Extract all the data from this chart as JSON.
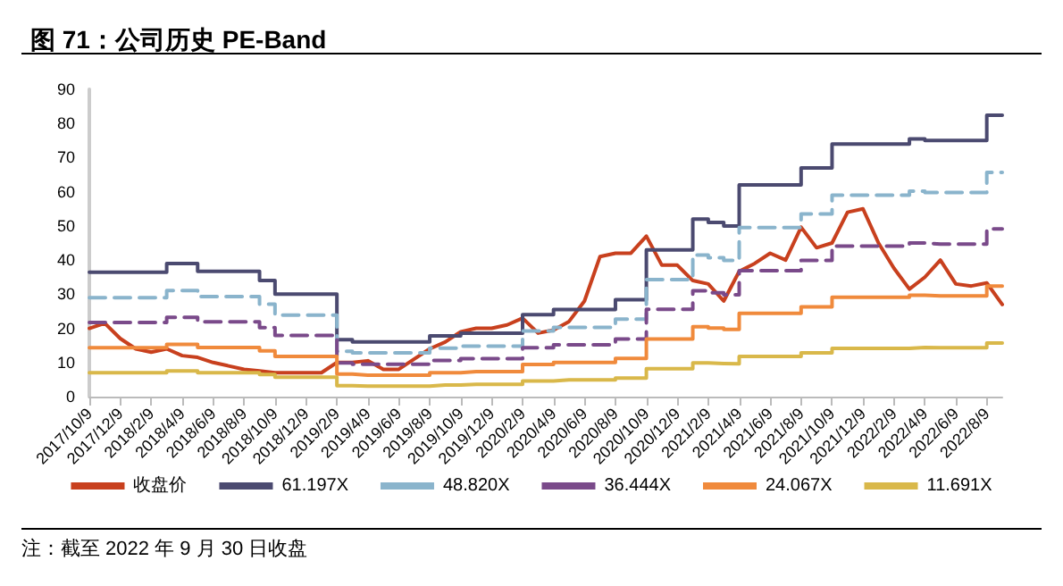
{
  "chart_data": {
    "type": "line",
    "title": "图 71：公司历史 PE-Band",
    "annotations": [
      "注：截至 2022 年 9 月 30 日收盘"
    ],
    "categories": [
      "2017/10/9",
      null,
      "2017/12/9",
      null,
      "2018/2/9",
      null,
      "2018/4/9",
      null,
      "2018/6/9",
      null,
      "2018/8/9",
      null,
      "2018/10/9",
      null,
      "2018/12/9",
      null,
      "2019/2/9",
      null,
      "2019/4/9",
      null,
      "2019/6/9",
      null,
      "2019/8/9",
      null,
      "2019/10/9",
      null,
      "2019/12/9",
      null,
      "2020/2/9",
      null,
      "2020/4/9",
      null,
      "2020/6/9",
      null,
      "2020/8/9",
      null,
      "2020/10/9",
      null,
      "2020/12/9",
      null,
      "2021/2/9",
      null,
      "2021/4/9",
      null,
      "2021/6/9",
      null,
      "2021/8/9",
      null,
      "2021/10/9",
      null,
      "2021/12/9",
      null,
      "2022/2/9",
      null,
      "2022/4/9",
      null,
      "2022/6/9",
      null,
      "2022/8/9",
      null
    ],
    "ylim": [
      0,
      90
    ],
    "yticks": [
      0,
      10,
      20,
      30,
      40,
      50,
      60,
      70,
      80,
      90
    ],
    "grid": false,
    "legend": "bottom",
    "marker": "none",
    "series": [
      {
        "name": "收盘价",
        "color": "#c8401e",
        "line_style": "solid",
        "values": [
          20,
          21.5,
          17,
          14,
          13,
          14,
          12,
          11.5,
          10,
          9,
          8,
          7.5,
          7,
          7,
          7,
          7,
          10,
          10,
          10.5,
          8,
          8,
          11,
          14,
          16,
          19,
          20,
          20,
          21,
          23,
          18.6,
          19.5,
          22,
          28,
          41,
          42,
          42,
          47,
          38.5,
          38.5,
          34,
          33,
          28,
          36.7,
          39,
          42,
          40,
          49.6,
          43.6,
          45,
          54,
          55,
          45,
          37.6,
          31.5,
          35,
          40,
          33,
          32.4,
          33.3,
          27
        ]
      },
      {
        "name": "61.197X",
        "type": "step",
        "color": "#4b4a70",
        "line_style": "solid",
        "values": [
          36.4,
          36.4,
          36.4,
          36.4,
          36.4,
          39,
          39,
          36.7,
          36.7,
          36.7,
          36.7,
          34,
          30,
          30,
          30,
          30,
          16.7,
          16,
          16,
          16,
          16,
          16,
          17.8,
          17.8,
          18.6,
          18.6,
          18.6,
          18.6,
          24,
          24,
          25.5,
          25.5,
          25.5,
          25.5,
          28.4,
          28.4,
          43,
          43,
          43,
          52,
          51,
          50,
          62,
          62,
          62,
          62,
          67,
          67,
          74,
          74,
          74,
          74,
          74,
          75.5,
          75,
          75,
          75,
          75,
          82.4,
          82.4
        ]
      },
      {
        "name": "48.820X",
        "type": "step",
        "color": "#8ab4cc",
        "line_style": "dashed",
        "values": [
          29.0,
          29.0,
          29.0,
          29.0,
          29.0,
          31.1,
          31.1,
          29.3,
          29.3,
          29.3,
          29.3,
          27.1,
          23.9,
          23.9,
          23.9,
          23.9,
          13.3,
          12.8,
          12.8,
          12.8,
          12.8,
          12.8,
          14.2,
          14.2,
          14.8,
          14.8,
          14.8,
          14.8,
          19.2,
          19.2,
          20.3,
          20.3,
          20.3,
          20.3,
          22.7,
          22.7,
          34.3,
          34.3,
          34.3,
          41.5,
          40.7,
          39.9,
          49.5,
          49.5,
          49.5,
          49.5,
          53.5,
          53.5,
          59.0,
          59.0,
          59.0,
          59.0,
          59.0,
          60.2,
          59.8,
          59.8,
          59.8,
          59.8,
          65.7,
          65.7
        ]
      },
      {
        "name": "36.444X",
        "type": "step",
        "color": "#7a4a8a",
        "line_style": "dashed",
        "values": [
          21.7,
          21.7,
          21.7,
          21.7,
          21.7,
          23.2,
          23.2,
          21.9,
          21.9,
          21.9,
          21.9,
          20.2,
          17.9,
          17.9,
          17.9,
          17.9,
          9.9,
          9.5,
          9.5,
          9.5,
          9.5,
          9.5,
          10.6,
          10.6,
          11.1,
          11.1,
          11.1,
          11.1,
          14.3,
          14.3,
          15.2,
          15.2,
          15.2,
          15.2,
          16.9,
          16.9,
          25.6,
          25.6,
          25.6,
          31.0,
          30.4,
          29.8,
          36.9,
          36.9,
          36.9,
          36.9,
          39.9,
          39.9,
          44.1,
          44.1,
          44.1,
          44.1,
          44.1,
          45.0,
          44.7,
          44.7,
          44.7,
          44.7,
          49.1,
          49.1
        ]
      },
      {
        "name": "24.067X",
        "type": "step",
        "color": "#f08a3c",
        "line_style": "solid",
        "values": [
          14.3,
          14.3,
          14.3,
          14.3,
          14.3,
          15.3,
          15.3,
          14.4,
          14.4,
          14.4,
          14.4,
          13.4,
          11.8,
          11.8,
          11.8,
          11.8,
          6.6,
          6.3,
          6.3,
          6.3,
          6.3,
          6.3,
          7.0,
          7.0,
          7.3,
          7.3,
          7.3,
          7.3,
          9.4,
          9.4,
          10.0,
          10.0,
          10.0,
          10.0,
          11.2,
          11.2,
          16.9,
          16.9,
          16.9,
          20.5,
          20.1,
          19.7,
          24.4,
          24.4,
          24.4,
          24.4,
          26.3,
          26.3,
          29.1,
          29.1,
          29.1,
          29.1,
          29.1,
          29.7,
          29.5,
          29.5,
          29.5,
          29.5,
          32.4,
          32.4
        ]
      },
      {
        "name": "11.691X",
        "type": "step",
        "color": "#d9b84a",
        "line_style": "solid",
        "values": [
          7.0,
          7.0,
          7.0,
          7.0,
          7.0,
          7.5,
          7.5,
          7.0,
          7.0,
          7.0,
          7.0,
          6.5,
          5.7,
          5.7,
          5.7,
          5.7,
          3.2,
          3.1,
          3.1,
          3.1,
          3.1,
          3.1,
          3.4,
          3.4,
          3.6,
          3.6,
          3.6,
          3.6,
          4.6,
          4.6,
          4.9,
          4.9,
          4.9,
          4.9,
          5.4,
          5.4,
          8.2,
          8.2,
          8.2,
          9.9,
          9.7,
          9.6,
          11.8,
          11.8,
          11.8,
          11.8,
          12.8,
          12.8,
          14.1,
          14.1,
          14.1,
          14.1,
          14.1,
          14.4,
          14.3,
          14.3,
          14.3,
          14.3,
          15.7,
          15.7
        ]
      }
    ]
  }
}
